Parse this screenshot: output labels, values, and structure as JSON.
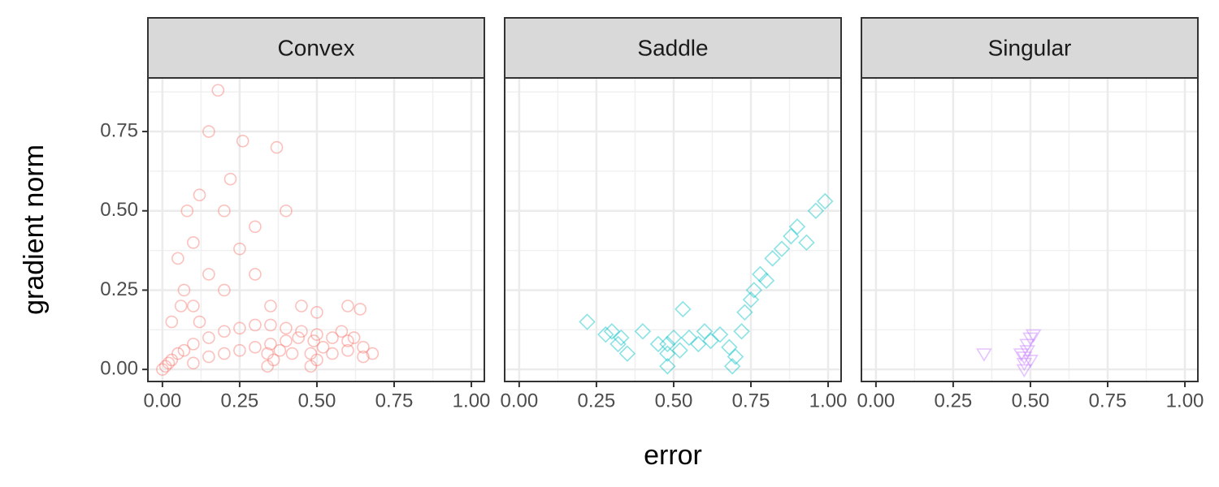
{
  "chart_data": {
    "type": "scatter",
    "x_label": "error",
    "y_label": "gradient norm",
    "ylim": [
      -0.038,
      0.919
    ],
    "yticks": [
      {
        "value": 0,
        "label": "0.00"
      },
      {
        "value": 0.25,
        "label": "0.25"
      },
      {
        "value": 0.5,
        "label": "0.50"
      },
      {
        "value": 0.75,
        "label": "0.75"
      }
    ],
    "grid": true,
    "opacity": 0.15,
    "panels": [
      {
        "title": "Convex",
        "color": "#F8766D",
        "marker": "circle",
        "xlim": [
          -0.047,
          1.042
        ],
        "xticks": [
          {
            "value": 0,
            "label": "0.00"
          },
          {
            "value": 0.25,
            "label": "0.25"
          },
          {
            "value": 0.5,
            "label": "0.50"
          },
          {
            "value": 0.75,
            "label": "0.75"
          },
          {
            "value": 1,
            "label": "1.00"
          }
        ],
        "x": [
          0,
          0.01,
          0.02,
          0.03,
          0.05,
          0.07,
          0.1,
          0.15,
          0.2,
          0.25,
          0.3,
          0.35,
          0.4,
          0.45,
          0.5,
          0.55,
          0.6,
          0.65,
          0.68,
          0.34,
          0.34,
          0.35,
          0.36,
          0.38,
          0.4,
          0.42,
          0.44,
          0.48,
          0.48,
          0.49,
          0.5,
          0.52,
          0.55,
          0.58,
          0.6,
          0.62,
          0.65,
          0.18,
          0.15,
          0.26,
          0.37,
          0.22,
          0.12,
          0.08,
          0.2,
          0.3,
          0.1,
          0.05,
          0.25,
          0.15,
          0.07,
          0.2,
          0.35,
          0.1,
          0.3,
          0.4,
          0.03,
          0.06,
          0.12,
          0.45,
          0.6,
          0.64,
          0.5,
          0.1,
          0.2,
          0.3,
          0.15,
          0.25
        ],
        "values": [
          0,
          0.01,
          0.02,
          0.03,
          0.05,
          0.06,
          0.08,
          0.1,
          0.12,
          0.13,
          0.14,
          0.14,
          0.13,
          0.12,
          0.11,
          0.1,
          0.09,
          0.07,
          0.05,
          0.01,
          0.05,
          0.08,
          0.03,
          0.06,
          0.09,
          0.05,
          0.1,
          0.01,
          0.05,
          0.09,
          0.03,
          0.07,
          0.05,
          0.12,
          0.06,
          0.1,
          0.04,
          0.88,
          0.75,
          0.72,
          0.7,
          0.6,
          0.55,
          0.5,
          0.5,
          0.45,
          0.4,
          0.35,
          0.38,
          0.3,
          0.25,
          0.25,
          0.2,
          0.2,
          0.3,
          0.5,
          0.15,
          0.2,
          0.15,
          0.2,
          0.2,
          0.19,
          0.18,
          0.02,
          0.05,
          0.07,
          0.04,
          0.06
        ]
      },
      {
        "title": "Saddle",
        "color": "#00BFC4",
        "marker": "diamond",
        "xlim": [
          -0.047,
          1.042
        ],
        "xticks": [
          {
            "value": 0,
            "label": "0.00"
          },
          {
            "value": 0.25,
            "label": "0.25"
          },
          {
            "value": 0.5,
            "label": "0.50"
          },
          {
            "value": 0.75,
            "label": "0.75"
          },
          {
            "value": 1,
            "label": "1.00"
          }
        ],
        "x": [
          0.22,
          0.28,
          0.3,
          0.32,
          0.35,
          0.33,
          0.48,
          0.48,
          0.48,
          0.5,
          0.52,
          0.53,
          0.55,
          0.58,
          0.6,
          0.62,
          0.65,
          0.68,
          0.69,
          0.7,
          0.72,
          0.73,
          0.75,
          0.76,
          0.78,
          0.8,
          0.82,
          0.85,
          0.88,
          0.9,
          0.93,
          0.96,
          0.99,
          0.45,
          0.4
        ],
        "values": [
          0.15,
          0.11,
          0.12,
          0.08,
          0.05,
          0.1,
          0.01,
          0.05,
          0.08,
          0.1,
          0.06,
          0.19,
          0.1,
          0.08,
          0.12,
          0.09,
          0.11,
          0.07,
          0.01,
          0.04,
          0.12,
          0.18,
          0.22,
          0.25,
          0.3,
          0.28,
          0.35,
          0.38,
          0.42,
          0.45,
          0.4,
          0.5,
          0.53,
          0.08,
          0.12
        ]
      },
      {
        "title": "Singular",
        "color": "#C77CFF",
        "marker": "triangle-down",
        "xlim": [
          -0.047,
          1.042
        ],
        "xticks": [
          {
            "value": 0,
            "label": "0.00"
          },
          {
            "value": 0.25,
            "label": "0.25"
          },
          {
            "value": 0.5,
            "label": "0.50"
          },
          {
            "value": 0.75,
            "label": "0.75"
          },
          {
            "value": 1,
            "label": "1.00"
          }
        ],
        "x": [
          0.35,
          0.48,
          0.48,
          0.48,
          0.49,
          0.49,
          0.5,
          0.5,
          0.51,
          0.47
        ],
        "values": [
          0.05,
          0,
          0.02,
          0.04,
          0.06,
          0.08,
          0.1,
          0.03,
          0.11,
          0.05
        ]
      }
    ]
  }
}
